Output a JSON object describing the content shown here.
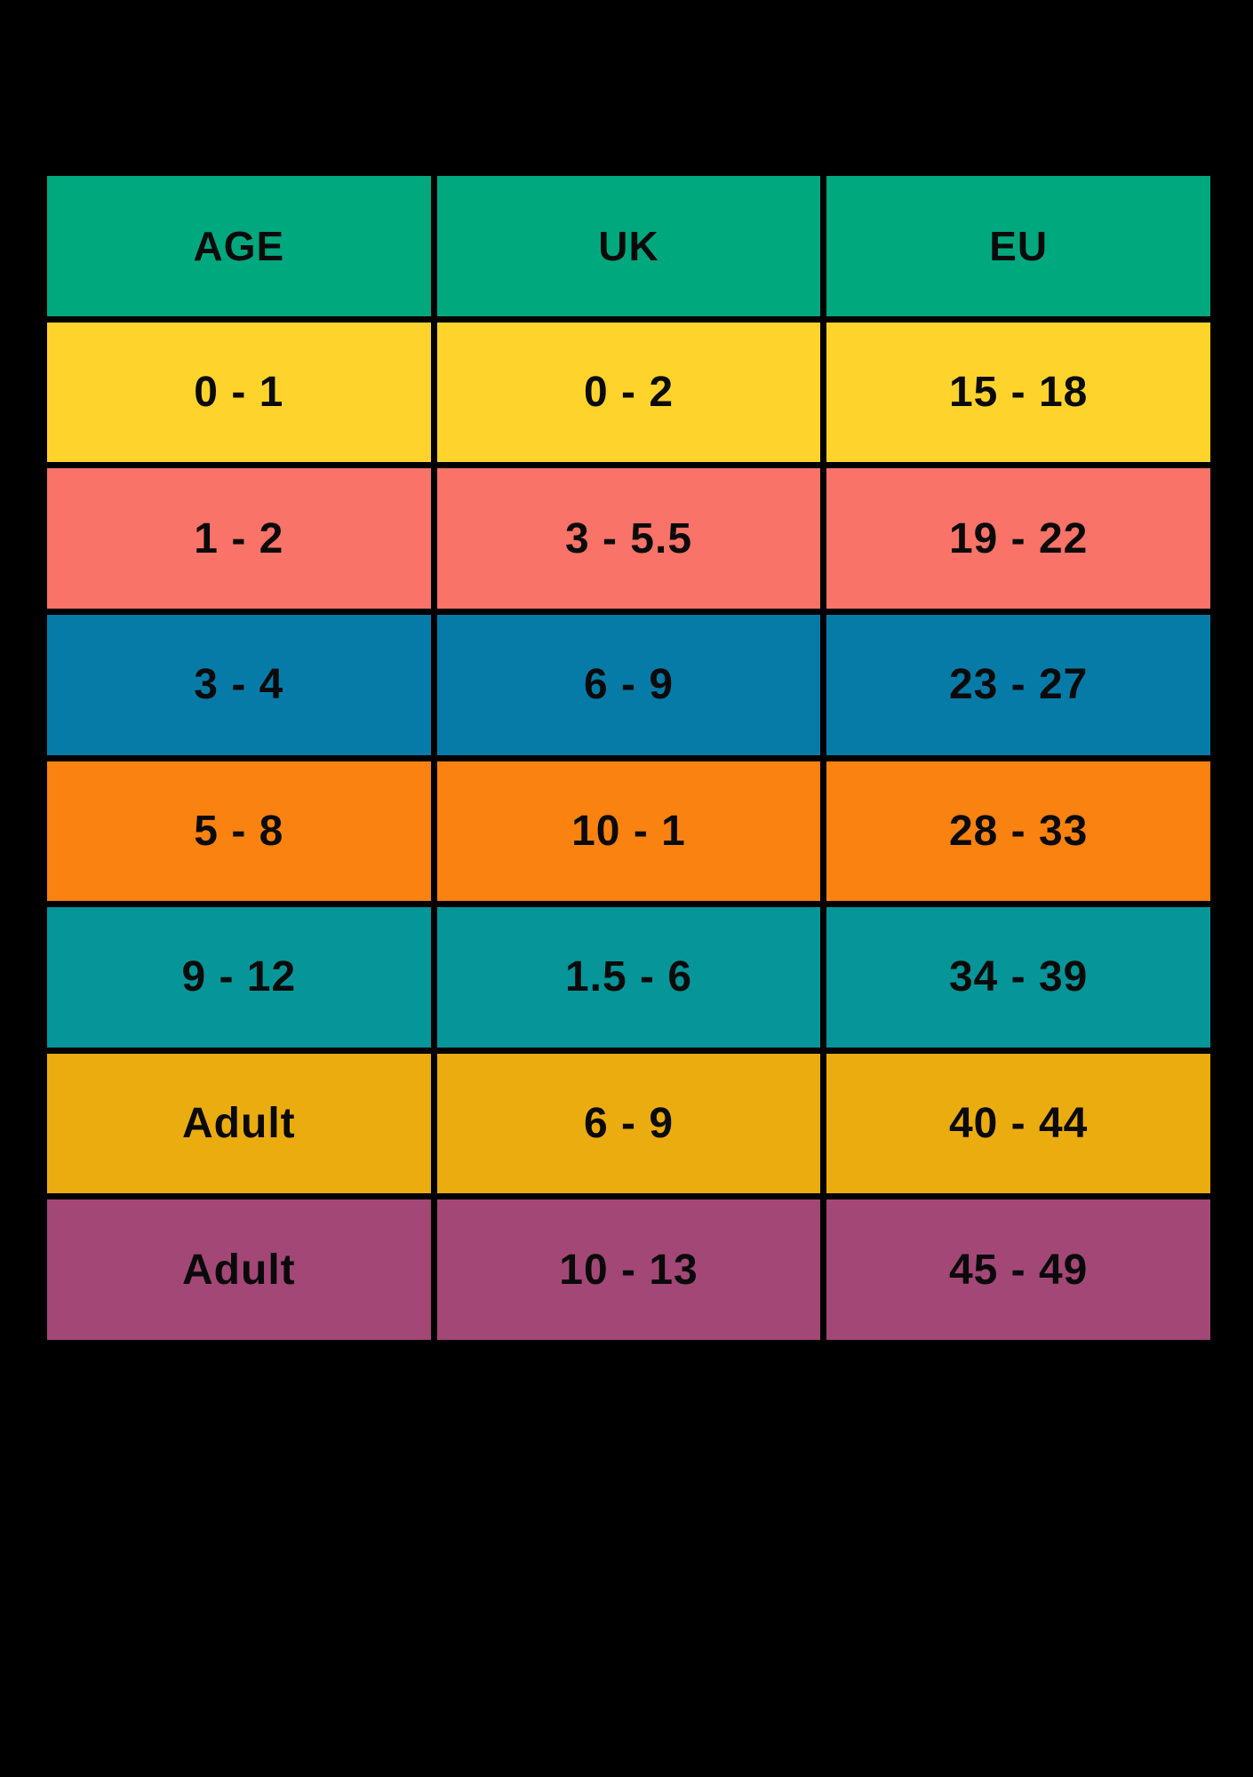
{
  "colors": {
    "background": "#000000",
    "text": "#0a0a0a",
    "header_green": "#00A87E",
    "row_yellow": "#FED42C",
    "row_salmon": "#F97368",
    "row_blue": "#077BA8",
    "row_orange": "#F98211",
    "row_teal": "#069598",
    "row_amber": "#EBAC10",
    "row_purple": "#A34777"
  },
  "table": {
    "headers": [
      "AGE",
      "UK",
      "EU"
    ],
    "header_color": "#00A87E",
    "rows": [
      {
        "color": "#FED42C",
        "cells": [
          "0 - 1",
          "0 - 2",
          "15 - 18"
        ]
      },
      {
        "color": "#F97368",
        "cells": [
          "1 - 2",
          "3 - 5.5",
          "19 - 22"
        ]
      },
      {
        "color": "#077BA8",
        "cells": [
          "3 - 4",
          "6 - 9",
          "23 - 27"
        ]
      },
      {
        "color": "#F98211",
        "cells": [
          "5 - 8",
          "10 - 1",
          "28 - 33"
        ]
      },
      {
        "color": "#069598",
        "cells": [
          "9 - 12",
          "1.5 - 6",
          "34 - 39"
        ]
      },
      {
        "color": "#EBAC10",
        "cells": [
          "Adult",
          "6 - 9",
          "40 - 44"
        ]
      },
      {
        "color": "#A34777",
        "cells": [
          "Adult",
          "10 - 13",
          "45 - 49"
        ]
      }
    ]
  },
  "chart_data": {
    "type": "table",
    "columns": [
      "AGE",
      "UK",
      "EU"
    ],
    "rows": [
      [
        "0 - 1",
        "0 - 2",
        "15 - 18"
      ],
      [
        "1 - 2",
        "3 - 5.5",
        "19 - 22"
      ],
      [
        "3 - 4",
        "6 - 9",
        "23 - 27"
      ],
      [
        "5 - 8",
        "10 - 1",
        "28 - 33"
      ],
      [
        "9 - 12",
        "1.5 - 6",
        "34 - 39"
      ],
      [
        "Adult",
        "6 - 9",
        "40 - 44"
      ],
      [
        "Adult",
        "10 - 13",
        "45 - 49"
      ]
    ],
    "title": "",
    "layout": "age-to-shoe-size conversion table, colored rows on black background"
  }
}
